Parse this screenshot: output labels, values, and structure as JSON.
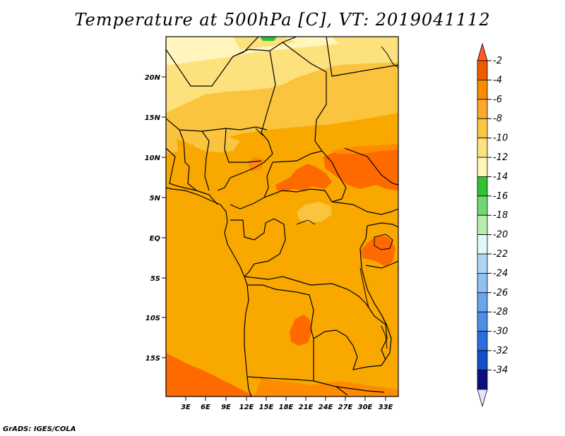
{
  "map": {
    "title": "Temperature at 500hPa [C], VT: 2019041112",
    "footer": "GrADS: IGES/COLA",
    "lat_labels": [
      "20N",
      "15N",
      "10N",
      "5N",
      "EQ",
      "5S",
      "10S",
      "15S"
    ],
    "lon_labels": [
      "3E",
      "6E",
      "9E",
      "12E",
      "15E",
      "18E",
      "21E",
      "24E",
      "27E",
      "30E",
      "33E"
    ],
    "colors": {
      "c_2": "#ff6a00",
      "c_4": "#ff8c00",
      "c_6": "#f9a800",
      "c_8": "#fac43f",
      "c_10": "#fde17d",
      "c_12": "#fff5bd",
      "green_dark": "#34c234",
      "border": "#000000"
    }
  },
  "colorbar": {
    "labels": [
      "-2",
      "-4",
      "-6",
      "-8",
      "-10",
      "-12",
      "-14",
      "-16",
      "-18",
      "-20",
      "-22",
      "-24",
      "-26",
      "-28",
      "-30",
      "-32",
      "-34"
    ],
    "colors": [
      "#ee5a00",
      "#f98c00",
      "#fba830",
      "#fcc645",
      "#fee27f",
      "#fff6b8",
      "#32c232",
      "#6fd86f",
      "#b6eeb0",
      "#e2f7f7",
      "#aed5f3",
      "#8ec0f0",
      "#6aa6ec",
      "#4c8fe6",
      "#2a6ede",
      "#134fc4",
      "#0b1080"
    ],
    "top_cap_color": "#ff5b28",
    "bottom_cap_color": "#e4e4fb"
  }
}
